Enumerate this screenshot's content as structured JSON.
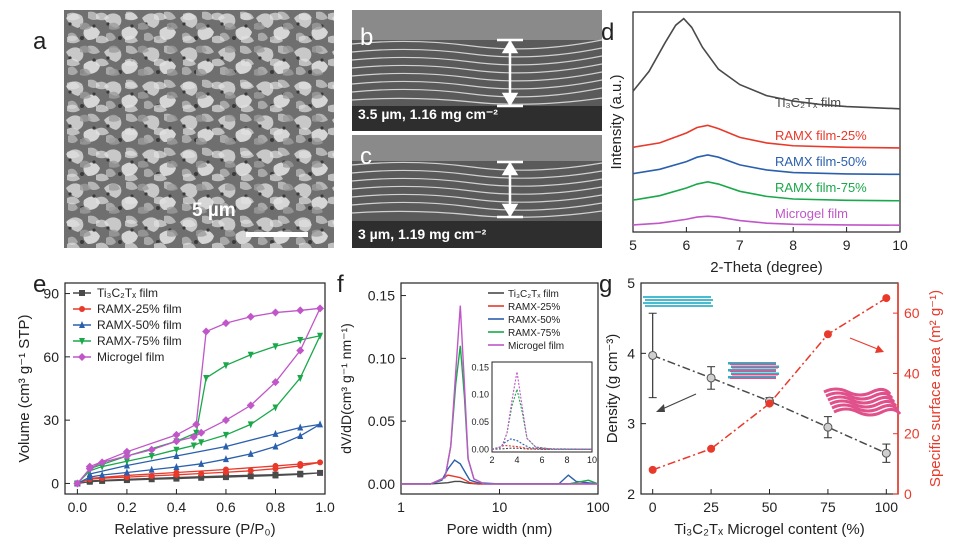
{
  "colors": {
    "black": "#4a4a4a",
    "red": "#e8392a",
    "blue": "#2a5fae",
    "green": "#1aa84a",
    "pink": "#c056c8",
    "cyan": "#2bb0c8",
    "magenta": "#e0508a",
    "axis_red": "#e8392a"
  },
  "images": {
    "a": {
      "letter": "a",
      "scale_label": "5 µm"
    },
    "b": {
      "letter": "b",
      "caption": "3.5 µm, 1.16 mg cm⁻²"
    },
    "c": {
      "letter": "c",
      "caption": "3 µm, 1.19 mg cm⁻²"
    }
  },
  "chart_data": [
    {
      "panel": "d",
      "type": "line",
      "xlabel": "2-Theta (degree)",
      "ylabel": "Intensity (a.u.)",
      "xlim": [
        5,
        10
      ],
      "xticks": [
        "5",
        "6",
        "7",
        "8",
        "9",
        "10"
      ],
      "y_ticks_shown": false,
      "series": [
        {
          "name": "Ti₃C₂Tₓ film",
          "color": "#4a4a4a",
          "offset": 5.0,
          "x": [
            5,
            5.3,
            5.6,
            5.8,
            5.95,
            6.1,
            6.3,
            6.6,
            7,
            7.5,
            8,
            8.5,
            9,
            9.5,
            10
          ],
          "y": [
            1.4,
            2.3,
            3.6,
            4.4,
            4.7,
            4.3,
            3.4,
            2.4,
            1.7,
            1.2,
            0.95,
            0.8,
            0.7,
            0.65,
            0.6
          ]
        },
        {
          "name": "RAMX film-25%",
          "color": "#e8392a",
          "offset": 3.8,
          "x": [
            5,
            5.5,
            6,
            6.2,
            6.4,
            6.6,
            7,
            7.5,
            8,
            9,
            10
          ],
          "y": [
            0.05,
            0.25,
            0.7,
            0.95,
            1.05,
            0.9,
            0.5,
            0.25,
            0.12,
            0.05,
            0.02
          ]
        },
        {
          "name": "RAMX film-50%",
          "color": "#2a5fae",
          "offset": 2.6,
          "x": [
            5,
            5.5,
            6,
            6.2,
            6.4,
            6.6,
            7,
            7.5,
            8,
            9,
            10
          ],
          "y": [
            0.05,
            0.25,
            0.6,
            0.8,
            0.9,
            0.8,
            0.45,
            0.22,
            0.1,
            0.04,
            0.02
          ]
        },
        {
          "name": "RAMX film-75%",
          "color": "#1aa84a",
          "offset": 1.4,
          "x": [
            5,
            5.5,
            6,
            6.2,
            6.4,
            6.6,
            7,
            7.5,
            8,
            9,
            10
          ],
          "y": [
            0.05,
            0.25,
            0.6,
            0.78,
            0.88,
            0.78,
            0.45,
            0.22,
            0.1,
            0.04,
            0.02
          ]
        },
        {
          "name": "Microgel film",
          "color": "#c056c8",
          "offset": 0.3,
          "x": [
            5,
            5.5,
            6,
            6.2,
            6.4,
            6.6,
            7,
            7.5,
            8,
            9,
            10
          ],
          "y": [
            0.02,
            0.1,
            0.28,
            0.38,
            0.42,
            0.38,
            0.22,
            0.1,
            0.05,
            0.02,
            0.01
          ]
        }
      ]
    },
    {
      "panel": "e",
      "type": "line",
      "xlabel": "Relative pressure (P/P₀)",
      "ylabel": "Volume (cm³ g⁻¹ STP)",
      "xlim": [
        -0.05,
        1.0
      ],
      "ylim": [
        -5,
        95
      ],
      "xticks": [
        "0.0",
        "0.2",
        "0.4",
        "0.6",
        "0.8",
        "1.0"
      ],
      "yticks": [
        "0",
        "30",
        "60",
        "90"
      ],
      "legend": "top-left",
      "series": [
        {
          "name": "Ti₃C₂Tₓ film",
          "color": "#4a4a4a",
          "marker": "square",
          "x": [
            0.0,
            0.05,
            0.1,
            0.2,
            0.3,
            0.4,
            0.5,
            0.6,
            0.7,
            0.8,
            0.9,
            0.98,
            0.9,
            0.8,
            0.6,
            0.4,
            0.2,
            0.05
          ],
          "y": [
            0,
            0.8,
            1.2,
            1.6,
            2.0,
            2.3,
            2.7,
            3.0,
            3.4,
            3.8,
            4.3,
            5.0,
            4.6,
            4.2,
            3.6,
            2.8,
            2.0,
            1.2
          ]
        },
        {
          "name": "RAMX-25% film",
          "color": "#e8392a",
          "marker": "circle",
          "x": [
            0.0,
            0.05,
            0.1,
            0.2,
            0.3,
            0.4,
            0.5,
            0.6,
            0.7,
            0.8,
            0.9,
            0.98,
            0.9,
            0.8,
            0.6,
            0.4,
            0.2,
            0.05
          ],
          "y": [
            0,
            2.0,
            2.5,
            3.0,
            3.6,
            4.1,
            4.7,
            5.3,
            6.0,
            7.0,
            8.3,
            10.0,
            9.2,
            8.3,
            6.6,
            5.2,
            3.8,
            2.4
          ]
        },
        {
          "name": "RAMX-50% film",
          "color": "#2a5fae",
          "marker": "triangle",
          "x": [
            0.0,
            0.05,
            0.1,
            0.2,
            0.3,
            0.4,
            0.5,
            0.6,
            0.7,
            0.8,
            0.9,
            0.98,
            0.9,
            0.8,
            0.6,
            0.4,
            0.2,
            0.05
          ],
          "y": [
            0,
            3.0,
            4.0,
            5.2,
            6.5,
            7.8,
            9.3,
            11.5,
            14.0,
            17.5,
            22.5,
            28.0,
            26.5,
            23.5,
            17.5,
            13.0,
            8.5,
            4.5
          ]
        },
        {
          "name": "RAMX-75% film",
          "color": "#1aa84a",
          "marker": "triangle-down",
          "x": [
            0.0,
            0.05,
            0.1,
            0.2,
            0.3,
            0.4,
            0.47,
            0.5,
            0.6,
            0.7,
            0.8,
            0.9,
            0.98,
            0.9,
            0.8,
            0.7,
            0.6,
            0.52,
            0.48,
            0.4,
            0.2,
            0.05
          ],
          "y": [
            0,
            6.0,
            8.0,
            10.5,
            13.0,
            16.0,
            18.0,
            19.5,
            23.0,
            28.0,
            36.0,
            50.0,
            70.0,
            68.0,
            65.0,
            61.0,
            56.0,
            50.0,
            24.0,
            20.0,
            13.0,
            7.0
          ]
        },
        {
          "name": "Microgel film",
          "color": "#c056c8",
          "marker": "diamond",
          "x": [
            0.0,
            0.05,
            0.1,
            0.2,
            0.3,
            0.4,
            0.47,
            0.5,
            0.6,
            0.7,
            0.8,
            0.9,
            0.98,
            0.9,
            0.8,
            0.7,
            0.6,
            0.52,
            0.48,
            0.4,
            0.2,
            0.05
          ],
          "y": [
            0,
            7.0,
            10.0,
            13.0,
            16.0,
            20.0,
            22.0,
            24.0,
            30.0,
            37.0,
            48.0,
            63.0,
            83.0,
            82.0,
            81.0,
            79.0,
            76.0,
            72.0,
            28.0,
            23.0,
            15.0,
            8.0
          ]
        }
      ]
    },
    {
      "panel": "f",
      "type": "line",
      "xlabel": "Pore width (nm)",
      "ylabel": "dV/dD(cm³ g⁻¹ nm⁻¹)",
      "xscale": "log",
      "xlim": [
        1,
        100
      ],
      "ylim": [
        -0.008,
        0.16
      ],
      "xticks": [
        "1",
        "10",
        "100"
      ],
      "yticks": [
        "0.00",
        "0.05",
        "0.10",
        "0.15"
      ],
      "legend": "top-right",
      "series": [
        {
          "name": "Ti₃C₂Tₓ film",
          "color": "#4a4a4a",
          "x": [
            1,
            2,
            3,
            3.5,
            4,
            4.5,
            5,
            6,
            10,
            50,
            100
          ],
          "y": [
            0,
            0.0,
            0.001,
            0.002,
            0.002,
            0.001,
            0.0005,
            0.0,
            0.0,
            0.0,
            0.0
          ]
        },
        {
          "name": "RAMX-25%",
          "color": "#e8392a",
          "x": [
            1,
            2,
            2.6,
            3,
            3.5,
            4,
            4.5,
            5,
            6,
            10,
            50,
            100
          ],
          "y": [
            0,
            0.0,
            0.004,
            0.007,
            0.006,
            0.005,
            0.003,
            0.001,
            0.0,
            0.0,
            0.0,
            0.0
          ]
        },
        {
          "name": "RAMX-50%",
          "color": "#2a5fae",
          "x": [
            1,
            2,
            2.6,
            3,
            3.5,
            4,
            4.5,
            5,
            6,
            10,
            40,
            50,
            60,
            100
          ],
          "y": [
            0,
            0.0,
            0.003,
            0.012,
            0.019,
            0.016,
            0.009,
            0.003,
            0.001,
            0.0,
            0.0,
            0.007,
            0.002,
            0.0
          ]
        },
        {
          "name": "RAMX-75%",
          "color": "#1aa84a",
          "x": [
            1,
            2,
            2.8,
            3.2,
            3.6,
            4,
            4.4,
            4.8,
            5.5,
            7,
            10,
            50,
            80,
            100
          ],
          "y": [
            0,
            0.0,
            0.005,
            0.03,
            0.08,
            0.11,
            0.07,
            0.02,
            0.004,
            0.0,
            0.0,
            0.0,
            0.003,
            0.0
          ]
        },
        {
          "name": "Microgel film",
          "color": "#c056c8",
          "x": [
            1,
            2,
            2.8,
            3.2,
            3.6,
            4,
            4.4,
            4.8,
            5.5,
            7,
            10,
            100
          ],
          "y": [
            0,
            0.0,
            0.005,
            0.03,
            0.09,
            0.142,
            0.08,
            0.02,
            0.004,
            0.0,
            0.0,
            0.0
          ]
        }
      ],
      "inset": {
        "xlim": [
          2,
          10
        ],
        "ylim": [
          -0.005,
          0.16
        ],
        "xticks": [
          "2",
          "4",
          "6",
          "8",
          "10"
        ],
        "yticks": [
          "0.00",
          "0.05",
          "0.10",
          "0.15"
        ]
      }
    },
    {
      "panel": "g",
      "type": "line",
      "xlabel": "Ti₃C₂Tₓ Microgel content (%)",
      "ylabel": "Density (g cm⁻³)",
      "ylabel_right": "Specific surface area (m² g⁻¹)",
      "xlim": [
        -5,
        105
      ],
      "ylim": [
        2,
        5
      ],
      "ylim_right": [
        0,
        70
      ],
      "xticks": [
        "0",
        "25",
        "50",
        "75",
        "100"
      ],
      "yticks": [
        "2",
        "3",
        "4",
        "5"
      ],
      "yticks_right": [
        "0",
        "20",
        "40",
        "60"
      ],
      "series": [
        {
          "name": "Density",
          "color": "#4a4a4a",
          "axis": "left",
          "x": [
            0,
            25,
            50,
            75,
            100
          ],
          "y": [
            3.97,
            3.65,
            3.32,
            2.95,
            2.58
          ],
          "err": [
            0.6,
            0.16,
            0.05,
            0.15,
            0.13
          ]
        },
        {
          "name": "Specific surface area",
          "color": "#e8392a",
          "axis": "right",
          "x": [
            0,
            25,
            50,
            75,
            100
          ],
          "y": [
            8,
            15,
            30,
            53,
            65
          ]
        }
      ]
    }
  ]
}
